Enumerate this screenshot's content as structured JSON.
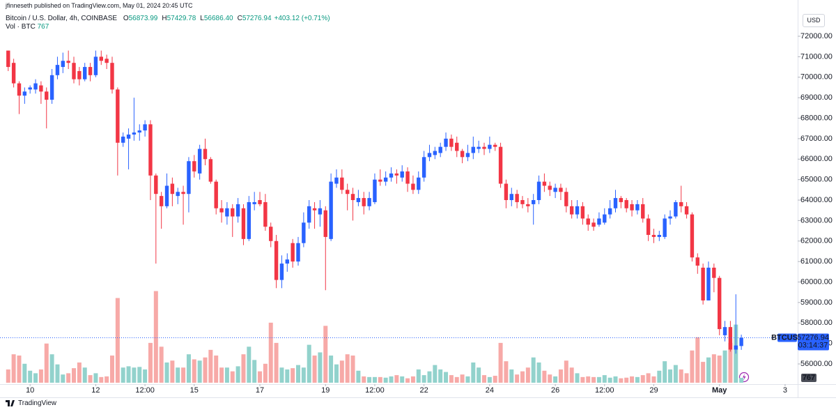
{
  "chart_data": {
    "type": "candlestick",
    "published": "jfinneseth published on TradingView.com, May 01, 2024 20:45 UTC",
    "symbol": "Bitcoin / U.S. Dollar, 4h, COINBASE",
    "ohlc": [
      {
        "key": "O",
        "value": "56873.99"
      },
      {
        "key": "H",
        "value": "57429.78"
      },
      {
        "key": "L",
        "value": "56686.40"
      },
      {
        "key": "C",
        "value": "57276.94"
      }
    ],
    "change": "+403.12 (+0.71%)",
    "volume_label": "Vol · BTC",
    "currency": "USD",
    "price_tag": "BTCUSD",
    "countdown": "03:14:37",
    "brand": "TradingView",
    "up_color": "#2962ff",
    "down_color": "#f23645",
    "volume_up_color": "#92d2cc",
    "volume_down_color": "#f7a9a7",
    "xlim": [
      -1.5,
      144.3
    ],
    "ylim": [
      55014,
      73770
    ],
    "volume_lim": [
      0,
      15000
    ],
    "grid": false,
    "xticks": [
      {
        "value": 4,
        "label": "10"
      },
      {
        "value": 16,
        "label": "12"
      },
      {
        "value": 25,
        "label": "12:00"
      },
      {
        "value": 34,
        "label": "15"
      },
      {
        "value": 46,
        "label": "17"
      },
      {
        "value": 58,
        "label": "19"
      },
      {
        "value": 67,
        "label": "12:00"
      },
      {
        "value": 76,
        "label": "22"
      },
      {
        "value": 88,
        "label": "24"
      },
      {
        "value": 100,
        "label": "26"
      },
      {
        "value": 109,
        "label": "12:00"
      },
      {
        "value": 118,
        "label": "29"
      },
      {
        "value": 130,
        "label": "May"
      },
      {
        "value": 142,
        "label": "3"
      }
    ],
    "yticks": [
      {
        "value": 56000,
        "label": "56000.00"
      },
      {
        "value": 57000,
        "label": "57000.00"
      },
      {
        "value": 58000,
        "label": "58000.00"
      },
      {
        "value": 59000,
        "label": "59000.00"
      },
      {
        "value": 60000,
        "label": "60000.00"
      },
      {
        "value": 61000,
        "label": "61000.00"
      },
      {
        "value": 62000,
        "label": "62000.00"
      },
      {
        "value": 63000,
        "label": "63000.00"
      },
      {
        "value": 64000,
        "label": "64000.00"
      },
      {
        "value": 65000,
        "label": "65000.00"
      },
      {
        "value": 66000,
        "label": "66000.00"
      },
      {
        "value": 67000,
        "label": "67000.00"
      },
      {
        "value": 68000,
        "label": "68000.00"
      },
      {
        "value": 69000,
        "label": "69000.00"
      },
      {
        "value": 70000,
        "label": "70000.00"
      },
      {
        "value": 71000,
        "label": "71000.00"
      },
      {
        "value": 72000,
        "label": "72000.00"
      }
    ],
    "candles": {
      "open": [
        71300,
        70700,
        69700,
        69100,
        69400,
        69400,
        69600,
        69300,
        68900,
        70100,
        70500,
        70800,
        70700,
        70300,
        69900,
        70500,
        70100,
        71000,
        70900,
        70700,
        69400,
        66800,
        67000,
        67200,
        67300,
        67400,
        67700,
        65200,
        64200,
        63700,
        64800,
        64200,
        64400,
        64300,
        65900,
        65300,
        66500,
        66000,
        64900,
        63600,
        63200,
        63600,
        63200,
        63600,
        62100,
        63800,
        64000,
        63900,
        62700,
        62000,
        60100,
        60900,
        61900,
        61000,
        61900,
        62900,
        63600,
        63300,
        63500,
        62100,
        64800,
        65100,
        64500,
        64300,
        63900,
        64100,
        63700,
        63900,
        65000,
        64900,
        65100,
        65300,
        65100,
        65400,
        64800,
        64500,
        65100,
        66100,
        66200,
        66300,
        66600,
        67000,
        66800,
        66400,
        66100,
        66300,
        66500,
        66600,
        66500,
        66700,
        66600,
        64800,
        64000,
        64300,
        64000,
        63800,
        63800,
        64000,
        64900,
        64700,
        64400,
        64600,
        64400,
        63700,
        63300,
        63700,
        63100,
        62900,
        62800,
        62900,
        63300,
        63600,
        64100,
        64000,
        63800,
        63500,
        63800,
        63100,
        62300,
        62200,
        62200,
        63100,
        63200,
        63900,
        63700,
        63300,
        61200,
        60700,
        59100,
        60700,
        60200,
        57400,
        57800,
        56700,
        56873.99
      ],
      "high": [
        71300,
        70900,
        69800,
        69500,
        69600,
        69900,
        69800,
        69500,
        70400,
        71000,
        71200,
        71300,
        71000,
        70500,
        70700,
        70700,
        71300,
        71300,
        71100,
        71000,
        69500,
        67300,
        67500,
        69000,
        67700,
        67900,
        67900,
        65300,
        64400,
        65300,
        65100,
        64600,
        64700,
        66100,
        66200,
        66700,
        67000,
        66100,
        65000,
        64000,
        63900,
        63800,
        64100,
        63800,
        64200,
        64400,
        64400,
        64300,
        62900,
        62300,
        61300,
        61400,
        62100,
        62200,
        63400,
        64000,
        63900,
        64000,
        63700,
        65300,
        65500,
        65500,
        64800,
        64600,
        64500,
        64400,
        64400,
        65300,
        65500,
        65400,
        65600,
        65500,
        65700,
        65600,
        65200,
        65400,
        66400,
        66700,
        66600,
        66800,
        67300,
        67200,
        67100,
        66500,
        66700,
        67100,
        66900,
        66800,
        67100,
        66800,
        66800,
        65000,
        64600,
        64500,
        64200,
        64100,
        64300,
        65200,
        65300,
        64900,
        64800,
        64800,
        64600,
        64000,
        64000,
        63900,
        63300,
        63100,
        63400,
        63600,
        64000,
        64500,
        64200,
        64100,
        64000,
        64000,
        64100,
        63300,
        62600,
        62500,
        63300,
        63500,
        64000,
        64700,
        63900,
        63400,
        61400,
        60900,
        61000,
        60900,
        60300,
        58100,
        58100,
        59400,
        57429.78
      ],
      "low": [
        70300,
        69500,
        68200,
        68700,
        69200,
        69200,
        68700,
        67500,
        68700,
        69900,
        70200,
        70400,
        69700,
        69600,
        69800,
        69800,
        70000,
        70600,
        70400,
        69200,
        65200,
        66600,
        65500,
        66900,
        66900,
        67100,
        64000,
        60900,
        62600,
        63600,
        63700,
        63800,
        62800,
        63400,
        65100,
        65000,
        65700,
        64800,
        63300,
        62900,
        62800,
        62200,
        62900,
        61800,
        62000,
        63500,
        63700,
        62500,
        61700,
        59700,
        59700,
        60500,
        60700,
        60800,
        61700,
        62600,
        62600,
        62700,
        59600,
        62000,
        64600,
        64300,
        63500,
        63000,
        63700,
        63300,
        63500,
        63800,
        64700,
        64700,
        64900,
        64800,
        64900,
        64400,
        64300,
        64300,
        64900,
        65900,
        66000,
        66100,
        66400,
        66400,
        66100,
        65800,
        65900,
        66000,
        66300,
        66200,
        66300,
        66400,
        64600,
        63600,
        63700,
        63600,
        63600,
        63400,
        62800,
        63800,
        64400,
        64200,
        64100,
        64000,
        63400,
        63100,
        63100,
        62800,
        62500,
        62500,
        62700,
        62800,
        63100,
        63400,
        63600,
        63400,
        63200,
        63300,
        62900,
        62000,
        61900,
        62000,
        62100,
        62800,
        63100,
        63400,
        63100,
        61000,
        60400,
        58900,
        59100,
        59500,
        57400,
        57100,
        56600,
        56500,
        56686.4
      ],
      "close": [
        70500,
        69700,
        69100,
        69300,
        69500,
        69700,
        69300,
        68900,
        70100,
        70600,
        70800,
        70700,
        69900,
        69900,
        70500,
        70100,
        71000,
        70800,
        70700,
        69400,
        66800,
        67100,
        67200,
        67300,
        67400,
        67700,
        65200,
        64300,
        63700,
        64700,
        64300,
        64400,
        64300,
        65900,
        65400,
        66500,
        66000,
        64900,
        63600,
        63400,
        63600,
        63200,
        63800,
        62100,
        63900,
        63900,
        63800,
        62700,
        62000,
        60100,
        60900,
        61100,
        61000,
        61900,
        62900,
        63700,
        63500,
        63600,
        62200,
        64900,
        65100,
        64500,
        64300,
        64000,
        64100,
        63700,
        64100,
        65000,
        64900,
        65100,
        65300,
        65200,
        65400,
        64800,
        64500,
        65100,
        66100,
        66300,
        66400,
        66600,
        67000,
        66600,
        66400,
        66100,
        66300,
        66600,
        66600,
        66500,
        66700,
        66600,
        64800,
        64000,
        64300,
        63900,
        63800,
        63700,
        64000,
        64900,
        64700,
        64500,
        64600,
        64400,
        63700,
        63300,
        63700,
        63100,
        62800,
        62700,
        63100,
        63300,
        63600,
        64100,
        63900,
        63600,
        63500,
        63800,
        63100,
        62300,
        62200,
        62300,
        63100,
        63200,
        63900,
        63700,
        63300,
        61200,
        60800,
        59100,
        60700,
        60200,
        57700,
        57800,
        56700,
        56900,
        57276.94
      ]
    },
    "volume": [
      2100,
      4500,
      4300,
      3000,
      1900,
      1500,
      2100,
      6200,
      4500,
      2900,
      1300,
      1500,
      2300,
      3200,
      2400,
      1200,
      1500,
      900,
      1000,
      4300,
      13400,
      2400,
      2600,
      2400,
      2500,
      2100,
      6300,
      14500,
      5700,
      3200,
      3500,
      2400,
      2400,
      4500,
      3700,
      3500,
      4000,
      5200,
      4300,
      2400,
      2400,
      1800,
      2600,
      4500,
      5700,
      3600,
      1800,
      3000,
      9500,
      6300,
      2400,
      2100,
      2300,
      2800,
      2400,
      6000,
      4300,
      4800,
      9000,
      4300,
      2900,
      3500,
      4500,
      4300,
      1900,
      1000,
      900,
      900,
      900,
      800,
      1000,
      1200,
      1000,
      700,
      1000,
      2100,
      1200,
      1800,
      2800,
      2100,
      1700,
      1200,
      900,
      1300,
      1000,
      3200,
      2400,
      1200,
      900,
      1100,
      6300,
      3400,
      2100,
      1300,
      1800,
      2400,
      4000,
      3200,
      1900,
      1300,
      1000,
      2100,
      3500,
      2400,
      1500,
      900,
      1000,
      900,
      900,
      1200,
      800,
      1000,
      700,
      800,
      1000,
      900,
      1200,
      1500,
      1000,
      1900,
      3400,
      2100,
      2800,
      2100,
      1500,
      5100,
      7200,
      3300,
      4000,
      4500,
      4300,
      5100,
      6300,
      9200,
      767
    ]
  }
}
